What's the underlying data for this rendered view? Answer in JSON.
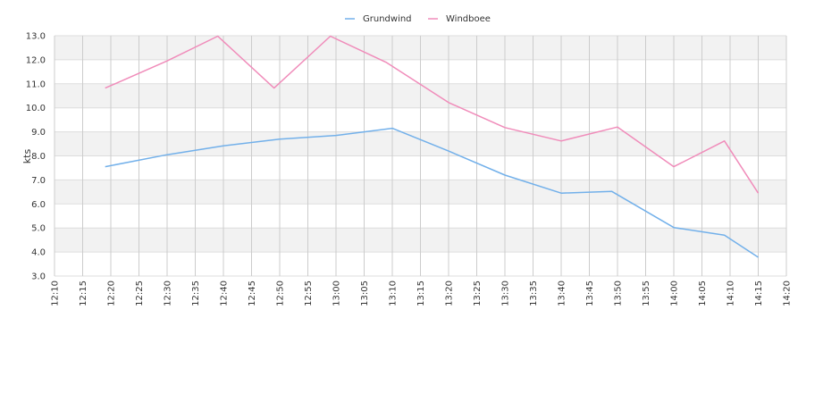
{
  "chart_data": {
    "type": "line",
    "ylabel": "kts",
    "xlabel": "",
    "title": "",
    "ylim": [
      3.0,
      13.0
    ],
    "y_ticks": [
      "3.0",
      "4.0",
      "5.0",
      "6.0",
      "7.0",
      "8.0",
      "9.0",
      "10.0",
      "11.0",
      "12.0",
      "13.0"
    ],
    "x_range": [
      "12:10",
      "14:20"
    ],
    "x_ticks": [
      "12:10",
      "12:15",
      "12:20",
      "12:25",
      "12:30",
      "12:35",
      "12:40",
      "12:45",
      "12:50",
      "12:55",
      "13:00",
      "13:05",
      "13:10",
      "13:15",
      "13:20",
      "13:25",
      "13:30",
      "13:35",
      "13:40",
      "13:45",
      "13:50",
      "13:55",
      "14:00",
      "14:05",
      "14:10",
      "14:15",
      "14:20"
    ],
    "grid": true,
    "legend_position": "top-center",
    "series": [
      {
        "name": "Grundwind",
        "color": "#72b0ea",
        "points": [
          {
            "x": "12:19",
            "y": 7.55
          },
          {
            "x": "12:30",
            "y": 8.05
          },
          {
            "x": "12:40",
            "y": 8.42
          },
          {
            "x": "12:50",
            "y": 8.7
          },
          {
            "x": "13:00",
            "y": 8.85
          },
          {
            "x": "13:10",
            "y": 9.15
          },
          {
            "x": "13:20",
            "y": 8.2
          },
          {
            "x": "13:30",
            "y": 7.2
          },
          {
            "x": "13:40",
            "y": 6.45
          },
          {
            "x": "13:49",
            "y": 6.52
          },
          {
            "x": "14:00",
            "y": 5.02
          },
          {
            "x": "14:09",
            "y": 4.7
          },
          {
            "x": "14:15",
            "y": 3.78
          }
        ]
      },
      {
        "name": "Windboee",
        "color": "#f08cba",
        "points": [
          {
            "x": "12:19",
            "y": 10.82
          },
          {
            "x": "12:30",
            "y": 11.95
          },
          {
            "x": "12:39",
            "y": 12.98
          },
          {
            "x": "12:49",
            "y": 10.82
          },
          {
            "x": "12:59",
            "y": 12.98
          },
          {
            "x": "13:09",
            "y": 11.88
          },
          {
            "x": "13:20",
            "y": 10.22
          },
          {
            "x": "13:30",
            "y": 9.18
          },
          {
            "x": "13:40",
            "y": 8.62
          },
          {
            "x": "13:50",
            "y": 9.2
          },
          {
            "x": "14:00",
            "y": 7.55
          },
          {
            "x": "14:09",
            "y": 8.62
          },
          {
            "x": "14:15",
            "y": 6.45
          }
        ]
      }
    ]
  }
}
